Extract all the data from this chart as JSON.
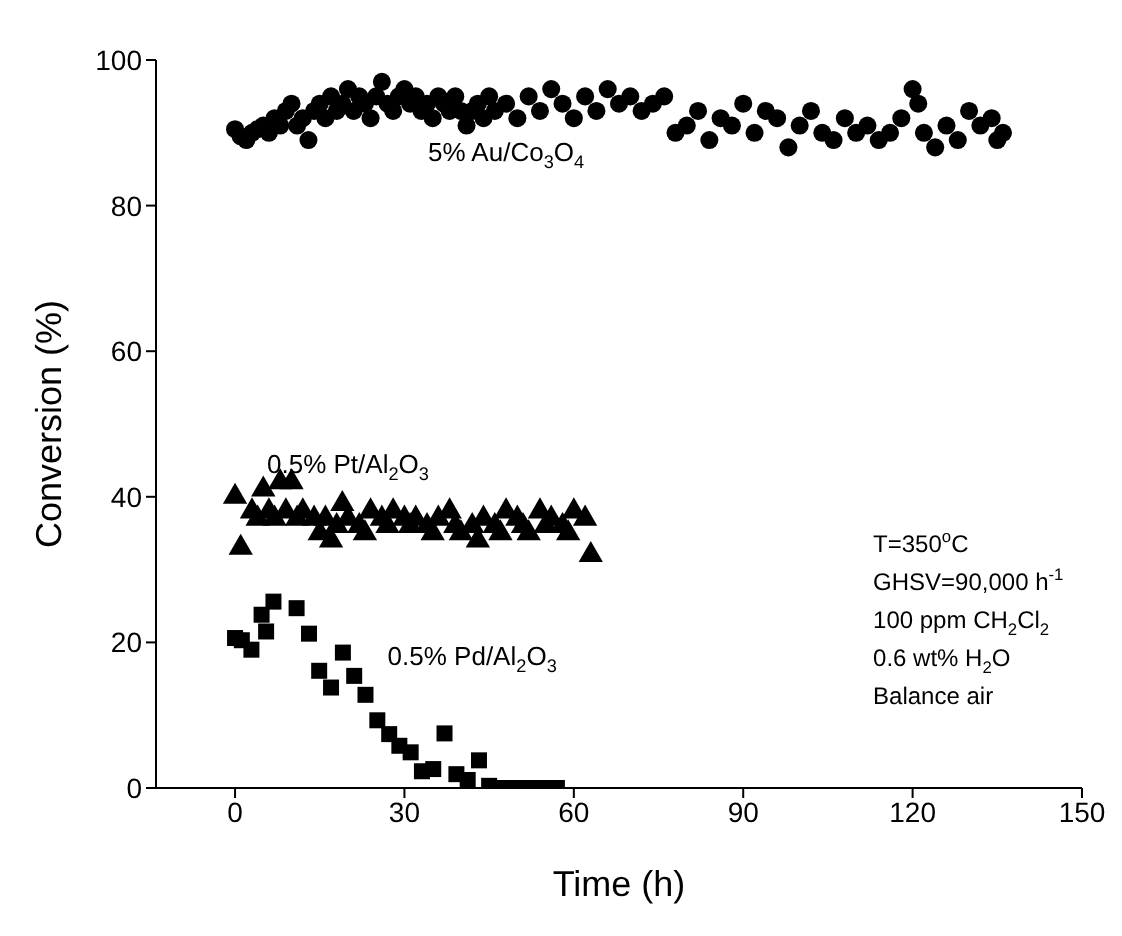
{
  "chart_data": {
    "type": "scatter",
    "xlabel": "Time (h)",
    "ylabel": "Conversion (%)",
    "xlim": [
      -14,
      150
    ],
    "xticks": [
      0,
      30,
      60,
      90,
      120,
      150
    ],
    "ylim": [
      0,
      100
    ],
    "yticks": [
      0,
      20,
      40,
      60,
      80,
      100
    ],
    "grid": false,
    "annotations": [
      "T=350$^{o}$C",
      "GHSV=90,000 h$^{-1}$",
      "100 ppm CH$_{2}$Cl$_{2}$",
      "0.6 wt% H$_{2}$O",
      "Balance air"
    ],
    "series": [
      {
        "name": "5% Au/Co$_{3}$O$_{4}$",
        "color": "#000000",
        "marker": "circle",
        "x": [
          0,
          1,
          2,
          3,
          4,
          5,
          6,
          7,
          8,
          9,
          10,
          11,
          12,
          13,
          14,
          15,
          16,
          17,
          18,
          19,
          20,
          21,
          22,
          23,
          24,
          25,
          26,
          27,
          28,
          29,
          30,
          31,
          32,
          33,
          34,
          35,
          36,
          37,
          38,
          39,
          40,
          41,
          42,
          43,
          44,
          45,
          46,
          48,
          50,
          52,
          54,
          56,
          58,
          60,
          62,
          64,
          66,
          68,
          70,
          72,
          74,
          76,
          78,
          80,
          82,
          84,
          86,
          88,
          90,
          92,
          94,
          96,
          98,
          100,
          102,
          104,
          106,
          108,
          110,
          112,
          114,
          116,
          118,
          120,
          121,
          122,
          124,
          126,
          128,
          130,
          132,
          134,
          135,
          136
        ],
        "values": [
          90.5,
          89.5,
          89,
          90,
          90.5,
          91,
          90,
          92,
          91,
          93,
          94,
          91,
          92,
          89,
          93,
          94,
          92,
          95,
          93,
          94,
          96,
          93,
          95,
          94,
          92,
          95,
          97,
          94,
          93,
          95,
          96,
          94,
          95,
          93,
          94,
          92,
          95,
          94,
          93,
          95,
          93,
          91,
          93,
          94,
          92,
          95,
          93,
          94,
          92,
          95,
          93,
          96,
          94,
          92,
          95,
          93,
          96,
          94,
          95,
          93,
          94,
          95,
          90,
          91,
          93,
          89,
          92,
          91,
          94,
          90,
          93,
          92,
          88,
          91,
          93,
          90,
          89,
          92,
          90,
          91,
          89,
          90,
          92,
          96,
          94,
          90,
          88,
          91,
          89,
          93,
          91,
          92,
          89,
          90
        ]
      },
      {
        "name": "0.5% Pt/Al$_{2}$O$_{3}$",
        "color": "#000000",
        "marker": "triangle",
        "x": [
          0,
          1,
          3,
          4,
          5,
          6,
          7,
          8,
          9,
          10,
          11,
          12,
          14,
          15,
          16,
          17,
          18,
          19,
          20,
          22,
          23,
          24,
          26,
          27,
          28,
          30,
          31,
          32,
          34,
          35,
          36,
          38,
          39,
          40,
          42,
          43,
          44,
          46,
          47,
          48,
          50,
          51,
          52,
          54,
          55,
          56,
          58,
          59,
          60,
          62,
          63
        ],
        "values": [
          40,
          33,
          38,
          37,
          41,
          38,
          37,
          42,
          38,
          42,
          37,
          38,
          37,
          35,
          37,
          34,
          36,
          39,
          37,
          36,
          35,
          38,
          37,
          36,
          38,
          37,
          36,
          37,
          36,
          35,
          37,
          38,
          36,
          35,
          36,
          34,
          37,
          36,
          35,
          38,
          37,
          36,
          35,
          38,
          36,
          37,
          36,
          35,
          38,
          37,
          32
        ]
      },
      {
        "name": "0.5% Pd/Al$_{2}$O$_{3}$",
        "color": "#000000",
        "marker": "square",
        "x": [
          0,
          1.2,
          2.9,
          4.7,
          5.5,
          6.8,
          10.9,
          13.1,
          14.9,
          17,
          19.1,
          21.1,
          23.1,
          25.2,
          27.3,
          29.1,
          31.1,
          33.1,
          35.1,
          37.1,
          39.2,
          41.2,
          43.2,
          45,
          47,
          49,
          51,
          53,
          55,
          57
        ],
        "values": [
          20.6,
          20.3,
          19,
          23.8,
          21.5,
          25.6,
          24.7,
          21.2,
          16.1,
          13.8,
          18.6,
          15.4,
          12.8,
          9.3,
          7.4,
          5.8,
          4.9,
          2.3,
          2.6,
          7.5,
          1.9,
          1.1,
          3.8,
          0.3,
          0,
          0,
          0,
          0,
          0,
          0
        ]
      }
    ]
  }
}
